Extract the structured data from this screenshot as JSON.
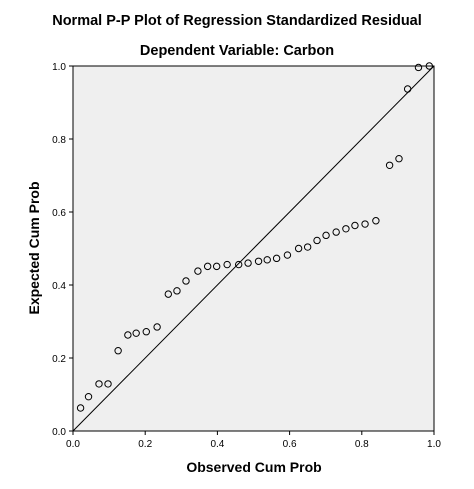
{
  "chart_data": {
    "type": "scatter",
    "title": "Normal P-P Plot of Regression Standardized Residual",
    "subtitle": "Dependent Variable: Carbon",
    "xlabel": "Observed Cum Prob",
    "ylabel": "Expected Cum Prob",
    "xlim": [
      0.0,
      1.0
    ],
    "ylim": [
      0.0,
      1.0
    ],
    "x_ticks": [
      "0.0",
      "0.2",
      "0.4",
      "0.6",
      "0.8",
      "1.0"
    ],
    "y_ticks": [
      "0.0",
      "0.2",
      "0.4",
      "0.6",
      "0.8",
      "1.0"
    ],
    "reference_line": [
      [
        0,
        0
      ],
      [
        1,
        1
      ]
    ],
    "marker": "open-circle",
    "background": "#efefef",
    "points": [
      [
        0.021,
        0.063
      ],
      [
        0.043,
        0.094
      ],
      [
        0.072,
        0.129
      ],
      [
        0.097,
        0.129
      ],
      [
        0.125,
        0.22
      ],
      [
        0.152,
        0.263
      ],
      [
        0.175,
        0.268
      ],
      [
        0.203,
        0.272
      ],
      [
        0.233,
        0.285
      ],
      [
        0.264,
        0.375
      ],
      [
        0.288,
        0.384
      ],
      [
        0.313,
        0.411
      ],
      [
        0.346,
        0.438
      ],
      [
        0.373,
        0.451
      ],
      [
        0.398,
        0.451
      ],
      [
        0.427,
        0.456
      ],
      [
        0.459,
        0.456
      ],
      [
        0.485,
        0.46
      ],
      [
        0.514,
        0.465
      ],
      [
        0.538,
        0.469
      ],
      [
        0.564,
        0.473
      ],
      [
        0.594,
        0.482
      ],
      [
        0.625,
        0.5
      ],
      [
        0.65,
        0.504
      ],
      [
        0.676,
        0.522
      ],
      [
        0.701,
        0.536
      ],
      [
        0.729,
        0.545
      ],
      [
        0.756,
        0.554
      ],
      [
        0.781,
        0.563
      ],
      [
        0.809,
        0.567
      ],
      [
        0.839,
        0.576
      ],
      [
        0.877,
        0.728
      ],
      [
        0.903,
        0.746
      ],
      [
        0.927,
        0.937
      ],
      [
        0.957,
        0.996
      ],
      [
        0.987,
        1.0
      ]
    ]
  }
}
